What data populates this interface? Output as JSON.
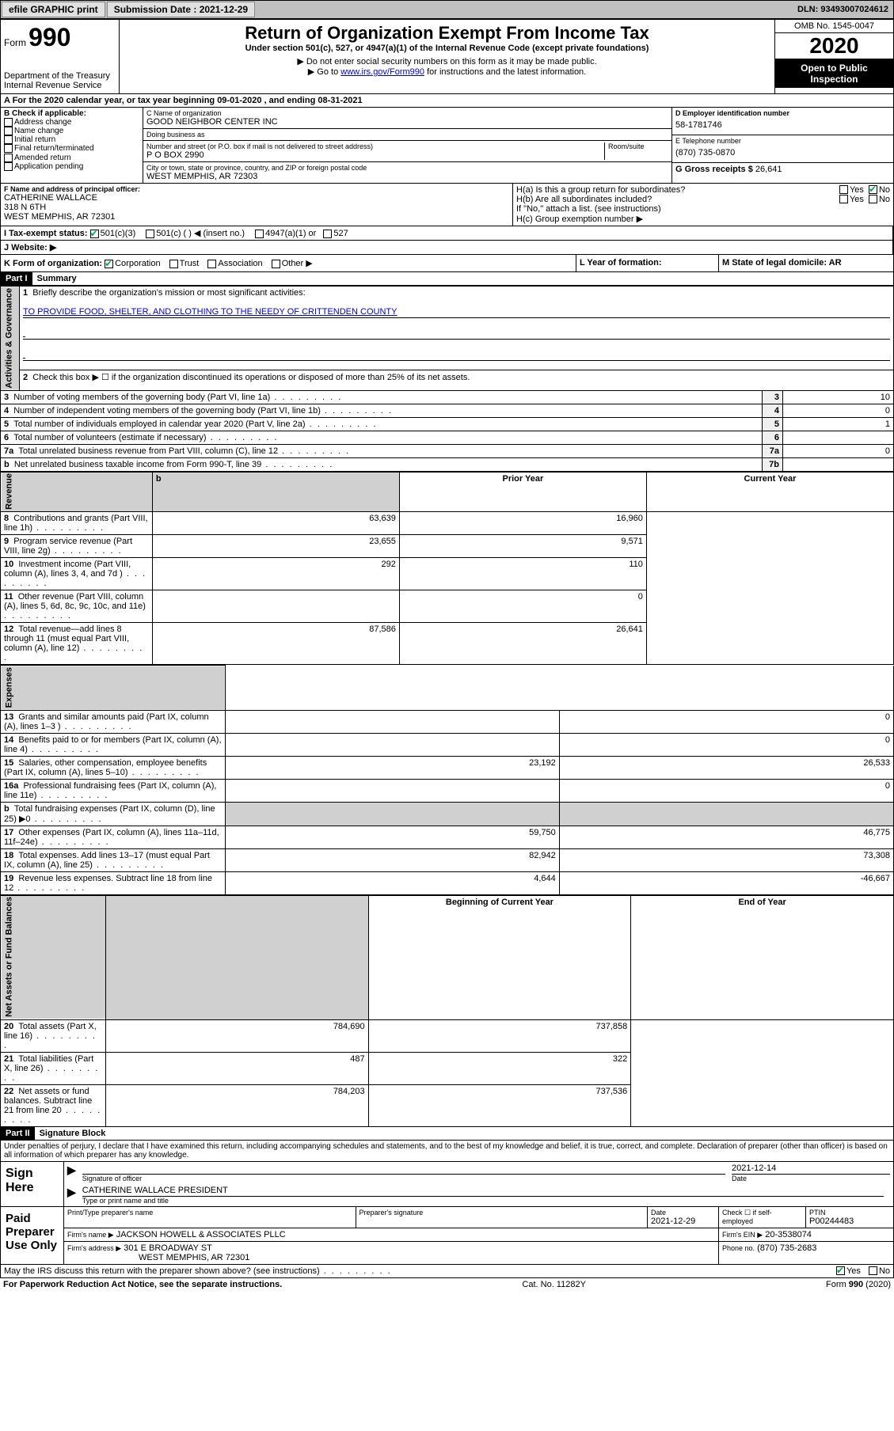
{
  "topbar": {
    "efile": "efile GRAPHIC print",
    "submission_label": "Submission Date : 2021-12-29",
    "dln_label": "DLN: 93493007024612"
  },
  "header": {
    "form_prefix": "Form",
    "form_number": "990",
    "dept": "Department of the Treasury",
    "irs": "Internal Revenue Service",
    "title": "Return of Organization Exempt From Income Tax",
    "subtitle": "Under section 501(c), 527, or 4947(a)(1) of the Internal Revenue Code (except private foundations)",
    "note1": "▶ Do not enter social security numbers on this form as it may be made public.",
    "note2_pre": "▶ Go to ",
    "note2_link": "www.irs.gov/Form990",
    "note2_post": " for instructions and the latest information.",
    "omb": "OMB No. 1545-0047",
    "year": "2020",
    "open": "Open to Public Inspection"
  },
  "period": "A For the 2020 calendar year, or tax year beginning 09-01-2020    , and ending 08-31-2021",
  "boxB": {
    "title": "B Check if applicable:",
    "items": [
      "Address change",
      "Name change",
      "Initial return",
      "Final return/terminated",
      "Amended return",
      "Application pending"
    ]
  },
  "boxC": {
    "name_label": "C Name of organization",
    "name": "GOOD NEIGHBOR CENTER INC",
    "dba_label": "Doing business as",
    "dba": "",
    "street_label": "Number and street (or P.O. box if mail is not delivered to street address)",
    "room_label": "Room/suite",
    "street": "P O BOX 2990",
    "city_label": "City or town, state or province, country, and ZIP or foreign postal code",
    "city": "WEST MEMPHIS, AR  72303"
  },
  "boxD": {
    "label": "D Employer identification number",
    "value": "58-1781746"
  },
  "boxE": {
    "label": "E Telephone number",
    "value": "(870) 735-0870"
  },
  "boxG": {
    "label": "G Gross receipts $",
    "value": "26,641"
  },
  "boxF": {
    "label": "F  Name and address of principal officer:",
    "name": "CATHERINE WALLACE",
    "street": "318 N 6TH",
    "city": "WEST MEMPHIS, AR  72301"
  },
  "boxH": {
    "ha": "H(a)  Is this a group return for subordinates?",
    "hb": "H(b)  Are all subordinates included?",
    "hb_note": "If \"No,\" attach a list. (see instructions)",
    "hc": "H(c)  Group exemption number ▶",
    "yes": "Yes",
    "no": "No"
  },
  "boxI": {
    "label": "I   Tax-exempt status:",
    "opts": [
      "501(c)(3)",
      "501(c) (  ) ◀ (insert no.)",
      "4947(a)(1) or",
      "527"
    ]
  },
  "boxJ": {
    "label": "J   Website: ▶"
  },
  "boxK": {
    "label": "K Form of organization:",
    "opts": [
      "Corporation",
      "Trust",
      "Association",
      "Other ▶"
    ]
  },
  "boxL": {
    "label": "L Year of formation:",
    "value": ""
  },
  "boxM": {
    "label": "M State of legal domicile: AR"
  },
  "part1": {
    "label": "Part I",
    "title": "Summary"
  },
  "summary": {
    "q1": "Briefly describe the organization's mission or most significant activities:",
    "mission": "TO PROVIDE FOOD, SHELTER, AND CLOTHING TO THE NEEDY OF CRITTENDEN COUNTY",
    "q2": "Check this box ▶ ☐  if the organization discontinued its operations or disposed of more than 25% of its net assets.",
    "rows_gov": [
      {
        "n": "3",
        "text": "Number of voting members of the governing body (Part VI, line 1a)",
        "box": "3",
        "val": "10"
      },
      {
        "n": "4",
        "text": "Number of independent voting members of the governing body (Part VI, line 1b)",
        "box": "4",
        "val": "0"
      },
      {
        "n": "5",
        "text": "Total number of individuals employed in calendar year 2020 (Part V, line 2a)",
        "box": "5",
        "val": "1"
      },
      {
        "n": "6",
        "text": "Total number of volunteers (estimate if necessary)",
        "box": "6",
        "val": ""
      },
      {
        "n": "7a",
        "text": "Total unrelated business revenue from Part VIII, column (C), line 12",
        "box": "7a",
        "val": "0"
      },
      {
        "n": "b",
        "text": "Net unrelated business taxable income from Form 990-T, line 39",
        "box": "7b",
        "val": ""
      }
    ],
    "col_prior": "Prior Year",
    "col_current": "Current Year",
    "rows_rev": [
      {
        "n": "8",
        "text": "Contributions and grants (Part VIII, line 1h)",
        "prior": "63,639",
        "curr": "16,960"
      },
      {
        "n": "9",
        "text": "Program service revenue (Part VIII, line 2g)",
        "prior": "23,655",
        "curr": "9,571"
      },
      {
        "n": "10",
        "text": "Investment income (Part VIII, column (A), lines 3, 4, and 7d )",
        "prior": "292",
        "curr": "110"
      },
      {
        "n": "11",
        "text": "Other revenue (Part VIII, column (A), lines 5, 6d, 8c, 9c, 10c, and 11e)",
        "prior": "",
        "curr": "0"
      },
      {
        "n": "12",
        "text": "Total revenue—add lines 8 through 11 (must equal Part VIII, column (A), line 12)",
        "prior": "87,586",
        "curr": "26,641"
      }
    ],
    "rows_exp": [
      {
        "n": "13",
        "text": "Grants and similar amounts paid (Part IX, column (A), lines 1–3 )",
        "prior": "",
        "curr": "0"
      },
      {
        "n": "14",
        "text": "Benefits paid to or for members (Part IX, column (A), line 4)",
        "prior": "",
        "curr": "0"
      },
      {
        "n": "15",
        "text": "Salaries, other compensation, employee benefits (Part IX, column (A), lines 5–10)",
        "prior": "23,192",
        "curr": "26,533"
      },
      {
        "n": "16a",
        "text": "Professional fundraising fees (Part IX, column (A), line 11e)",
        "prior": "",
        "curr": "0"
      },
      {
        "n": "b",
        "text": "Total fundraising expenses (Part IX, column (D), line 25) ▶0",
        "prior": "SHADE",
        "curr": "SHADE"
      },
      {
        "n": "17",
        "text": "Other expenses (Part IX, column (A), lines 11a–11d, 11f–24e)",
        "prior": "59,750",
        "curr": "46,775"
      },
      {
        "n": "18",
        "text": "Total expenses. Add lines 13–17 (must equal Part IX, column (A), line 25)",
        "prior": "82,942",
        "curr": "73,308"
      },
      {
        "n": "19",
        "text": "Revenue less expenses. Subtract line 18 from line 12",
        "prior": "4,644",
        "curr": "-46,667"
      }
    ],
    "col_begin": "Beginning of Current Year",
    "col_end": "End of Year",
    "rows_net": [
      {
        "n": "20",
        "text": "Total assets (Part X, line 16)",
        "prior": "784,690",
        "curr": "737,858"
      },
      {
        "n": "21",
        "text": "Total liabilities (Part X, line 26)",
        "prior": "487",
        "curr": "322"
      },
      {
        "n": "22",
        "text": "Net assets or fund balances. Subtract line 21 from line 20",
        "prior": "784,203",
        "curr": "737,536"
      }
    ],
    "vert_gov": "Activities & Governance",
    "vert_rev": "Revenue",
    "vert_exp": "Expenses",
    "vert_net": "Net Assets or Fund Balances"
  },
  "part2": {
    "label": "Part II",
    "title": "Signature Block"
  },
  "sig": {
    "declaration": "Under penalties of perjury, I declare that I have examined this return, including accompanying schedules and statements, and to the best of my knowledge and belief, it is true, correct, and complete. Declaration of preparer (other than officer) is based on all information of which preparer has any knowledge.",
    "sign_here": "Sign Here",
    "officer_sig": "Signature of officer",
    "officer_date": "2021-12-14",
    "date_label": "Date",
    "officer_name": "CATHERINE WALLACE PRESIDENT",
    "officer_name_label": "Type or print name and title",
    "paid": "Paid Preparer Use Only",
    "prep_name_label": "Print/Type preparer's name",
    "prep_name": "",
    "prep_sig_label": "Preparer's signature",
    "prep_date_label": "Date",
    "prep_date": "2021-12-29",
    "self_emp": "Check ☐ if self-employed",
    "ptin_label": "PTIN",
    "ptin": "P00244483",
    "firm_name_label": "Firm's name    ▶",
    "firm_name": "JACKSON HOWELL & ASSOCIATES PLLC",
    "firm_ein_label": "Firm's EIN ▶",
    "firm_ein": "20-3538074",
    "firm_addr_label": "Firm's address ▶",
    "firm_addr1": "301 E BROADWAY ST",
    "firm_addr2": "WEST MEMPHIS, AR  72301",
    "phone_label": "Phone no.",
    "phone": "(870) 735-2683",
    "discuss": "May the IRS discuss this return with the preparer shown above? (see instructions)"
  },
  "footer": {
    "left": "For Paperwork Reduction Act Notice, see the separate instructions.",
    "mid": "Cat. No. 11282Y",
    "right": "Form 990 (2020)"
  }
}
